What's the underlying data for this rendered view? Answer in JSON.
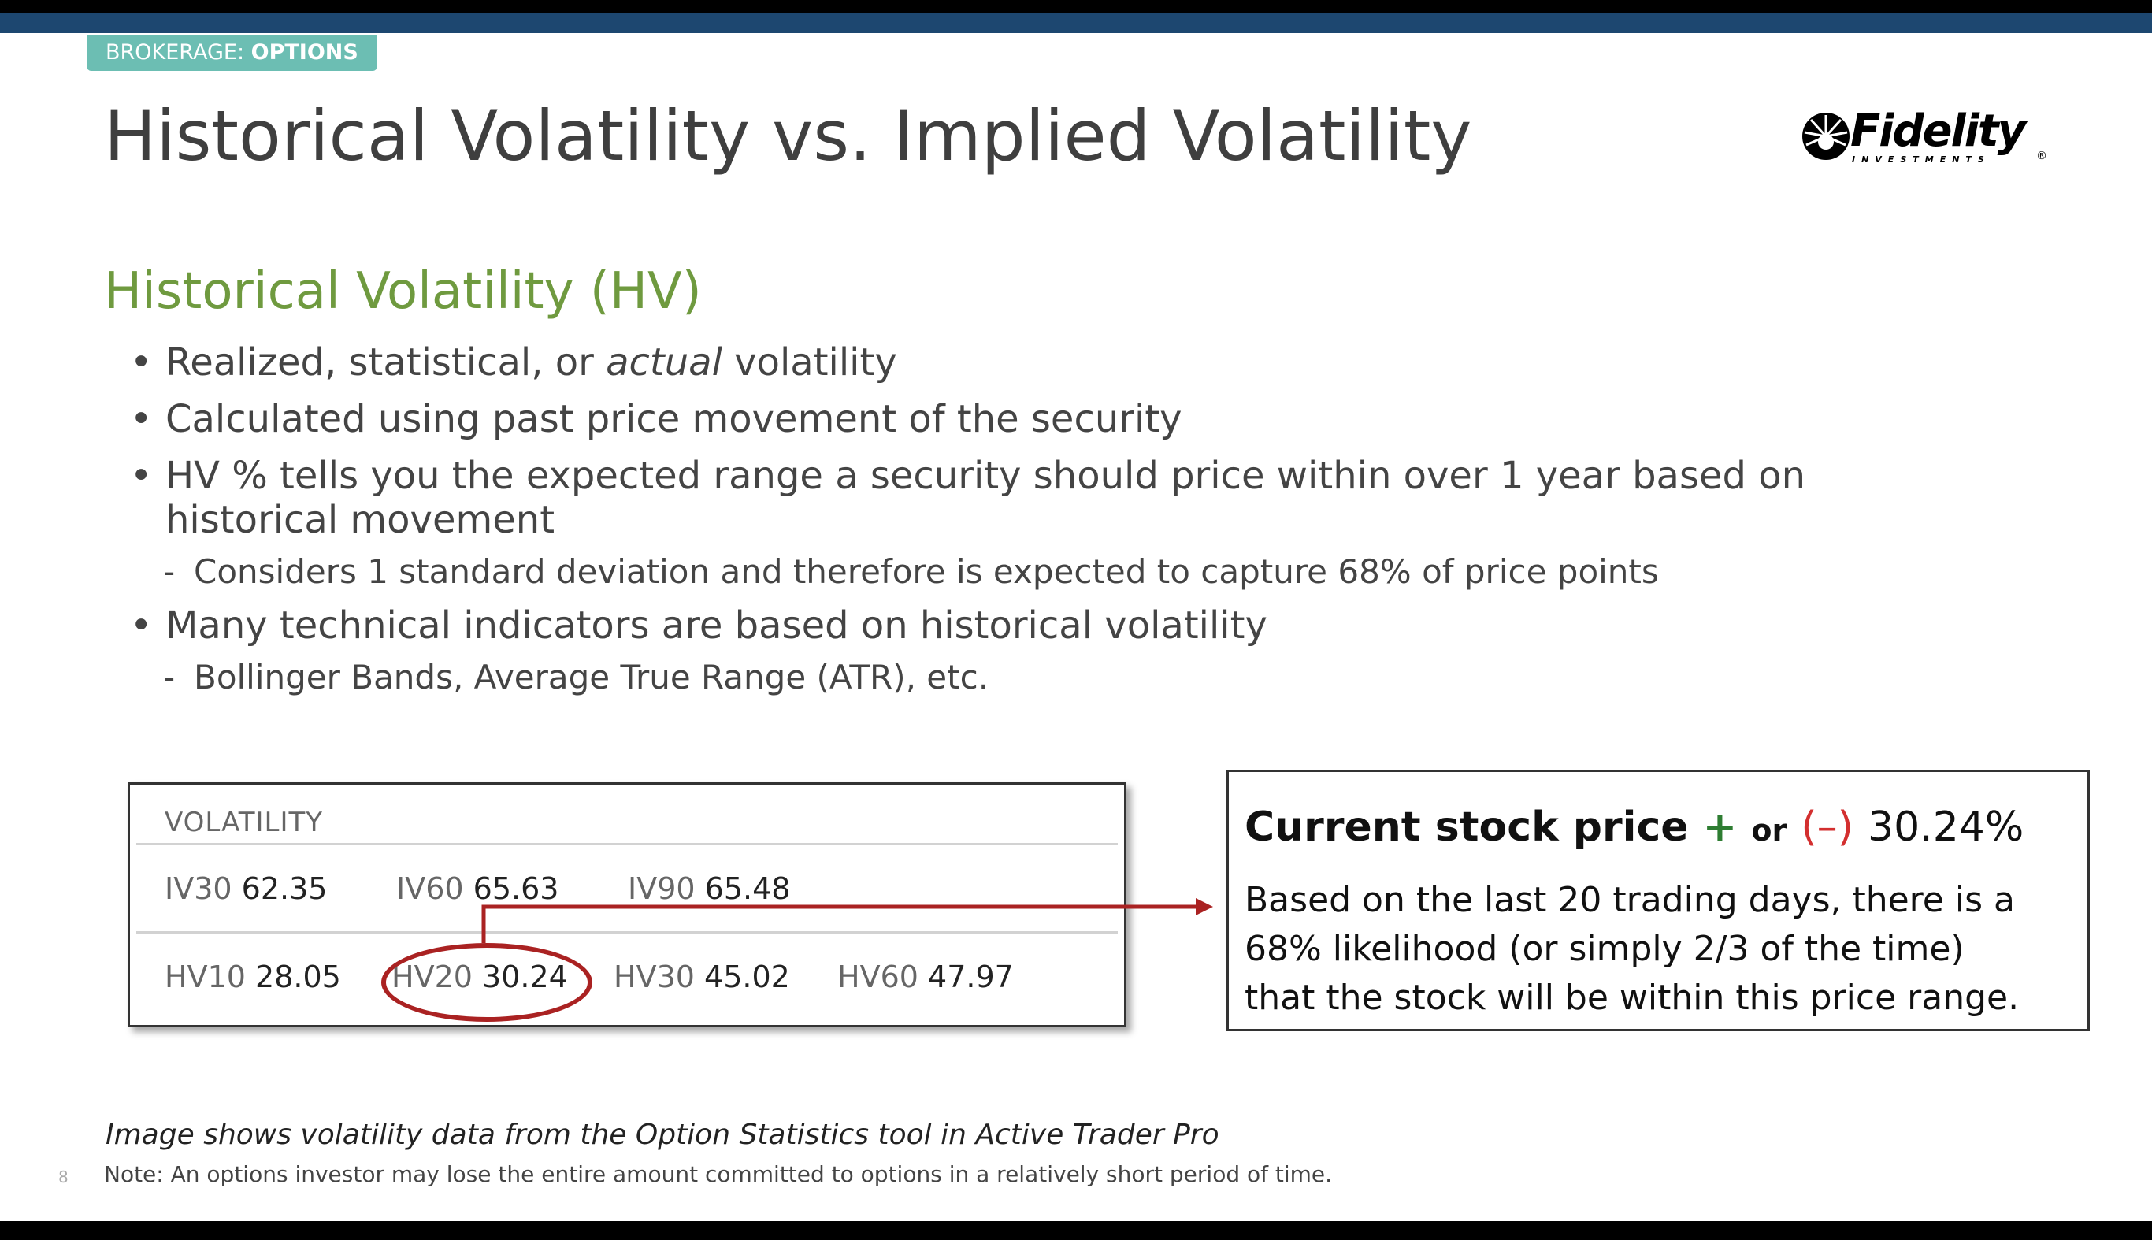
{
  "colors": {
    "top_bar": "#1d4770",
    "tag": "#6cbeb3",
    "subhead": "#6f9a3f",
    "plus": "#2e7d32",
    "minus": "#d32f2f",
    "highlight": "#aa2222"
  },
  "header": {
    "tag_prefix": "BROKERAGE:",
    "tag_bold": "OPTIONS",
    "title": "Historical Volatility vs. Implied Volatility",
    "logo": {
      "icon": "fidelity-starburst-icon",
      "word": "Fidelity",
      "sub": "INVESTMENTS",
      "mark": "®"
    }
  },
  "section": {
    "heading": "Historical Volatility (HV)",
    "bullet1_pre": "Realized, statistical, or ",
    "bullet1_em": "actual",
    "bullet1_post": " volatility",
    "bullet2": "Calculated using past price movement of the security",
    "bullet3": "HV % tells you the expected range a security should price within over 1 year based on historical movement",
    "bullet3_sub": "Considers 1 standard deviation and therefore is expected to capture 68% of price points",
    "bullet4": "Many technical indicators are based on historical volatility",
    "bullet4_sub": "Bollinger Bands, Average True Range (ATR), etc."
  },
  "volatility": {
    "heading": "VOLATILITY",
    "iv": [
      {
        "label": "IV30",
        "value": "62.35"
      },
      {
        "label": "IV60",
        "value": "65.63"
      },
      {
        "label": "IV90",
        "value": "65.48"
      }
    ],
    "hv": [
      {
        "label": "HV10",
        "value": "28.05"
      },
      {
        "label": "HV20",
        "value": "30.24"
      },
      {
        "label": "HV30",
        "value": "45.02"
      },
      {
        "label": "HV60",
        "value": "47.97"
      }
    ]
  },
  "callout": {
    "head_text": "Current stock price",
    "plus": "+",
    "or": "or",
    "minus": "(–)",
    "pct": "30.24%",
    "line1": "Based on the last 20 trading days, there is a",
    "line2": "68% likelihood (or simply 2/3 of the time)",
    "line3": "that the stock will be within this price range."
  },
  "footer": {
    "caption": "Image shows volatility data from the Option Statistics tool in Active Trader Pro",
    "page_number": "8",
    "disclaimer": "Note: An options investor may lose the entire amount committed to options in a relatively short period of time."
  }
}
